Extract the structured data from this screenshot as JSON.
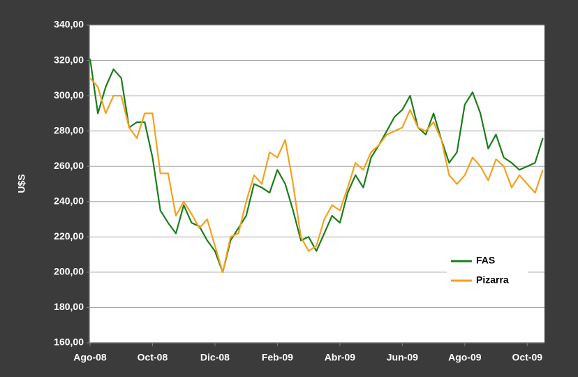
{
  "chart_data": {
    "type": "line",
    "axis_label_y": "U$S",
    "categories": [
      "Ago-08",
      null,
      null,
      null,
      null,
      null,
      null,
      null,
      "Oct-08",
      null,
      null,
      null,
      null,
      null,
      null,
      null,
      "Dic-08",
      null,
      null,
      null,
      null,
      null,
      null,
      null,
      "Feb-09",
      null,
      null,
      null,
      null,
      null,
      null,
      null,
      "Abr-09",
      null,
      null,
      null,
      null,
      null,
      null,
      null,
      "Jun-09",
      null,
      null,
      null,
      null,
      null,
      null,
      null,
      "Ago-09",
      null,
      null,
      null,
      null,
      null,
      null,
      null,
      "Oct-09",
      null,
      null
    ],
    "series": [
      {
        "name": "FAS",
        "color": "#1b7d1b",
        "values": [
          321,
          290,
          305,
          315,
          310,
          282,
          285,
          285,
          265,
          235,
          228,
          222,
          238,
          228,
          226,
          218,
          212,
          200,
          218,
          225,
          232,
          250,
          248,
          245,
          258,
          250,
          235,
          218,
          220,
          212,
          222,
          232,
          228,
          245,
          255,
          248,
          265,
          272,
          280,
          288,
          292,
          300,
          282,
          278,
          290,
          275,
          262,
          268,
          295,
          302,
          290,
          270,
          278,
          265,
          262,
          258,
          260,
          262,
          276
        ]
      },
      {
        "name": "Pizarra",
        "color": "#f5a01e",
        "values": [
          310,
          305,
          290,
          300,
          300,
          282,
          276,
          290,
          290,
          256,
          256,
          232,
          240,
          233,
          225,
          230,
          215,
          200,
          220,
          222,
          240,
          255,
          250,
          268,
          265,
          275,
          250,
          220,
          212,
          215,
          230,
          238,
          235,
          248,
          262,
          258,
          268,
          272,
          278,
          280,
          282,
          292,
          282,
          280,
          285,
          275,
          255,
          250,
          255,
          265,
          260,
          252,
          264,
          260,
          248,
          255,
          250,
          245,
          258
        ]
      }
    ],
    "ylim": [
      160,
      340
    ],
    "yticks": [
      {
        "value": 160,
        "label": "160,00"
      },
      {
        "value": 180,
        "label": "180,00"
      },
      {
        "value": 200,
        "label": "200,00"
      },
      {
        "value": 220,
        "label": "220,00"
      },
      {
        "value": 240,
        "label": "240,00"
      },
      {
        "value": 260,
        "label": "260,00"
      },
      {
        "value": 280,
        "label": "280,00"
      },
      {
        "value": 300,
        "label": "300,00"
      },
      {
        "value": 320,
        "label": "320,00"
      },
      {
        "value": 340,
        "label": "340,00"
      }
    ],
    "grid": true,
    "legend": "lower right"
  }
}
